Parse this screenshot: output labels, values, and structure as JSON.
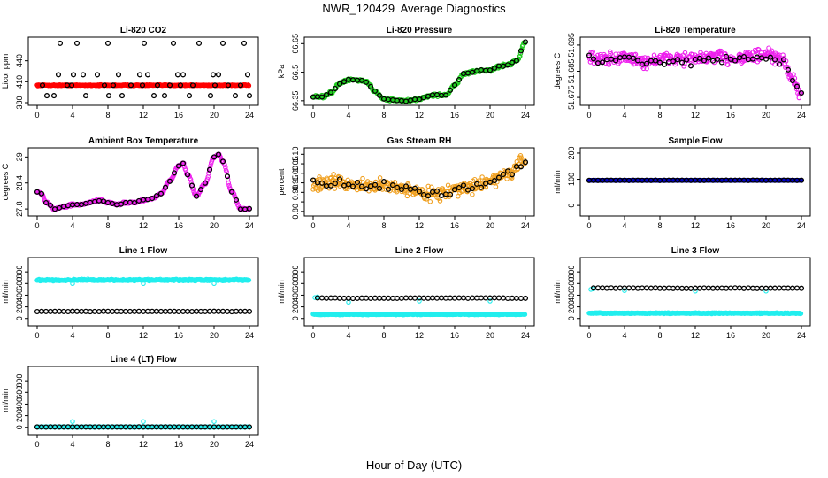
{
  "figure": {
    "title": "NWR_120429  Average Diagnostics",
    "xlabel": "Hour of Day (UTC)"
  },
  "colors": {
    "red": "#ff0000",
    "black": "#000000",
    "green": "#22cc22",
    "magenta": "#ee22ee",
    "orange": "#f0a020",
    "cyan": "#22eeee",
    "blue": "#0000cc"
  },
  "chart_data": [
    {
      "type": "scatter",
      "title": "Li-820 CO2",
      "ylabel": "Licor ppm",
      "xlim": [
        0,
        24
      ],
      "ylim": [
        380,
        470
      ],
      "xticks": [
        0,
        4,
        8,
        12,
        16,
        20,
        24
      ],
      "yticks": [
        380,
        410,
        440
      ],
      "series": [
        {
          "color": "red",
          "dense": true,
          "kind": "flat",
          "level": 405,
          "noise": 0.6
        },
        {
          "color": "black",
          "kind": "points",
          "x": [
            0.6,
            1.1,
            1.9,
            2.6,
            2.4,
            3.4,
            3.9,
            4.1,
            4.5,
            5.2,
            5.5,
            6.8,
            7.6,
            8.0,
            8.1,
            8.6,
            9.2,
            9.6,
            10.6,
            11.6,
            11.9,
            12.1,
            12.5,
            13.2,
            13.6,
            14.4,
            15.0,
            15.4,
            15.9,
            16.2,
            16.5,
            17.2,
            17.6,
            18.3,
            19.6,
            19.9,
            20.1,
            20.5,
            21.0,
            21.6,
            22.4,
            23.0,
            23.4,
            23.8,
            24.0
          ],
          "y": [
            405,
            390,
            390,
            465,
            420,
            405,
            405,
            420,
            465,
            420,
            390,
            420,
            405,
            465,
            390,
            405,
            420,
            390,
            405,
            420,
            405,
            465,
            420,
            390,
            405,
            390,
            405,
            465,
            420,
            405,
            420,
            390,
            405,
            465,
            390,
            420,
            405,
            420,
            465,
            405,
            390,
            405,
            465,
            420,
            390
          ]
        }
      ]
    },
    {
      "type": "scatter",
      "title": "Li-820 Pressure",
      "ylabel": "kPa",
      "xlim": [
        0,
        24
      ],
      "ylim": [
        66.34,
        66.67
      ],
      "xticks": [
        0,
        4,
        8,
        12,
        16,
        20,
        24
      ],
      "yticks": [
        66.35,
        66.5,
        66.65
      ],
      "series": [
        {
          "color": "green",
          "dense": true,
          "kind": "curve",
          "noise": 0.006,
          "x": [
            0,
            1,
            2,
            3,
            4,
            5,
            6,
            7,
            8,
            9,
            10,
            11,
            12,
            13,
            14,
            15,
            16,
            17,
            18,
            19,
            20,
            21,
            22,
            23,
            24
          ],
          "y": [
            66.37,
            66.37,
            66.39,
            66.44,
            66.46,
            66.46,
            66.45,
            66.4,
            66.36,
            66.355,
            66.35,
            66.35,
            66.36,
            66.375,
            66.38,
            66.38,
            66.43,
            66.49,
            66.5,
            66.51,
            66.51,
            66.53,
            66.54,
            66.56,
            66.66
          ]
        },
        {
          "color": "black",
          "kind": "curve",
          "step": 0.5,
          "noise": 0.003,
          "x": [
            0,
            1,
            2,
            3,
            4,
            5,
            6,
            7,
            8,
            9,
            10,
            11,
            12,
            13,
            14,
            15,
            16,
            17,
            18,
            19,
            20,
            21,
            22,
            23,
            24
          ],
          "y": [
            66.37,
            66.37,
            66.39,
            66.44,
            66.46,
            66.46,
            66.45,
            66.4,
            66.36,
            66.355,
            66.35,
            66.35,
            66.36,
            66.375,
            66.38,
            66.38,
            66.43,
            66.49,
            66.5,
            66.51,
            66.51,
            66.53,
            66.54,
            66.56,
            66.66
          ]
        }
      ]
    },
    {
      "type": "scatter",
      "title": "Li-820 Temperature",
      "ylabel": "degrees C",
      "xlim": [
        0,
        24
      ],
      "ylim": [
        51.673,
        51.697
      ],
      "xticks": [
        0,
        4,
        8,
        12,
        16,
        20,
        24
      ],
      "yticks": [
        51.675,
        51.685,
        51.695
      ],
      "series": [
        {
          "color": "magenta",
          "dense": true,
          "kind": "curve",
          "noise": 0.0022,
          "x": [
            0,
            2,
            4,
            6,
            8,
            10,
            12,
            14,
            16,
            18,
            20,
            22,
            23,
            24
          ],
          "y": [
            51.6905,
            51.6895,
            51.6905,
            51.6885,
            51.6895,
            51.69,
            51.6895,
            51.6905,
            51.69,
            51.6905,
            51.691,
            51.689,
            51.682,
            51.676
          ]
        },
        {
          "color": "black",
          "kind": "curve",
          "step": 0.5,
          "noise": 0.0012,
          "x": [
            0,
            2,
            4,
            6,
            8,
            10,
            12,
            14,
            16,
            18,
            20,
            22,
            23,
            24
          ],
          "y": [
            51.6895,
            51.689,
            51.6895,
            51.688,
            51.689,
            51.6895,
            51.6885,
            51.6895,
            51.689,
            51.6895,
            51.6905,
            51.688,
            51.682,
            51.677
          ]
        }
      ]
    },
    {
      "type": "scatter",
      "title": "Ambient Box Temperature",
      "ylabel": "degrees C",
      "xlim": [
        0,
        24
      ],
      "ylim": [
        27.7,
        29.15
      ],
      "xticks": [
        0,
        4,
        8,
        12,
        16,
        20,
        24
      ],
      "yticks": [
        27.8,
        28.4,
        29.0
      ],
      "series": [
        {
          "color": "magenta",
          "dense": true,
          "kind": "curve",
          "noise": 0.02,
          "x": [
            0,
            0.5,
            1,
            2,
            3,
            4,
            5,
            6,
            7,
            8,
            9,
            10,
            11,
            12,
            13,
            14,
            15,
            16,
            16.5,
            17,
            18,
            19,
            20,
            20.5,
            21,
            22,
            23,
            24
          ],
          "y": [
            28.2,
            28.15,
            27.95,
            27.8,
            27.85,
            27.9,
            27.9,
            27.95,
            28.0,
            27.95,
            27.9,
            27.95,
            27.95,
            28.0,
            28.05,
            28.15,
            28.45,
            28.8,
            28.85,
            28.6,
            28.1,
            28.4,
            29.0,
            29.05,
            28.9,
            28.2,
            27.8,
            27.8
          ]
        },
        {
          "color": "black",
          "kind": "curve",
          "step": 0.5,
          "noise": 0.01,
          "x": [
            0,
            0.5,
            1,
            2,
            3,
            4,
            5,
            6,
            7,
            8,
            9,
            10,
            11,
            12,
            13,
            14,
            15,
            16,
            16.5,
            17,
            18,
            19,
            20,
            20.5,
            21,
            22,
            23,
            24
          ],
          "y": [
            28.2,
            28.15,
            27.95,
            27.8,
            27.85,
            27.9,
            27.9,
            27.95,
            28.0,
            27.95,
            27.9,
            27.95,
            27.95,
            28.0,
            28.05,
            28.15,
            28.45,
            28.8,
            28.85,
            28.6,
            28.1,
            28.4,
            29.0,
            29.05,
            28.9,
            28.2,
            27.8,
            27.8
          ]
        }
      ]
    },
    {
      "type": "scatter",
      "title": "Gas Stream RH",
      "ylabel": "percent",
      "xlim": [
        0,
        24
      ],
      "ylim": [
        0.79,
        1.12
      ],
      "xticks": [
        0,
        4,
        8,
        12,
        16,
        20,
        24
      ],
      "yticks": [
        0.8,
        0.85,
        0.9,
        0.95,
        1.0,
        1.05,
        1.1
      ],
      "ytick_labels": [
        "0.80",
        "",
        "0.90",
        "0.95",
        "1.00",
        "1.05",
        "1.10"
      ],
      "series": [
        {
          "color": "orange",
          "dense": true,
          "kind": "curve",
          "noise": 0.028,
          "x": [
            0,
            2,
            4,
            6,
            8,
            10,
            12,
            14,
            16,
            18,
            20,
            22,
            24
          ],
          "y": [
            0.94,
            0.955,
            0.945,
            0.93,
            0.935,
            0.925,
            0.9,
            0.895,
            0.91,
            0.93,
            0.96,
            1.0,
            1.06
          ]
        },
        {
          "color": "black",
          "kind": "curve",
          "step": 0.5,
          "noise": 0.02,
          "x": [
            0,
            2,
            4,
            6,
            8,
            10,
            12,
            14,
            16,
            18,
            20,
            22,
            24
          ],
          "y": [
            0.94,
            0.955,
            0.945,
            0.93,
            0.935,
            0.925,
            0.9,
            0.895,
            0.91,
            0.93,
            0.96,
            1.0,
            1.06
          ]
        }
      ]
    },
    {
      "type": "scatter",
      "title": "Sample Flow",
      "ylabel": "ml/min",
      "xlim": [
        0,
        24
      ],
      "ylim": [
        -30,
        210
      ],
      "xticks": [
        0,
        4,
        8,
        12,
        16,
        20,
        24
      ],
      "yticks": [
        0,
        100,
        200
      ],
      "series": [
        {
          "color": "blue",
          "dense": true,
          "kind": "flat",
          "level": 96,
          "noise": 0.5
        },
        {
          "color": "black",
          "kind": "flat",
          "step": 0.5,
          "level": 96,
          "noise": 0.3
        }
      ]
    },
    {
      "type": "scatter",
      "title": "Line 1 Flow",
      "ylabel": "ml/min",
      "xlim": [
        0,
        24
      ],
      "ylim": [
        -80,
        1000
      ],
      "xticks": [
        0,
        4,
        8,
        12,
        16,
        20,
        24
      ],
      "yticks": [
        0,
        200,
        400,
        600,
        800
      ],
      "series": [
        {
          "color": "cyan",
          "dense": true,
          "kind": "flat",
          "level": 660,
          "noise": 12,
          "spikes": [
            {
              "x": 4,
              "y": 600
            },
            {
              "x": 12,
              "y": 600
            },
            {
              "x": 20,
              "y": 600
            }
          ]
        },
        {
          "color": "black",
          "kind": "flat",
          "step": 0.5,
          "level": 120,
          "noise": 2
        }
      ]
    },
    {
      "type": "scatter",
      "title": "Line 2 Flow",
      "ylabel": "ml/min",
      "xlim": [
        0,
        24
      ],
      "ylim": [
        -80,
        1000
      ],
      "xticks": [
        0,
        4,
        8,
        12,
        16,
        20,
        24
      ],
      "yticks": [
        0,
        200,
        400,
        600,
        800
      ],
      "series": [
        {
          "color": "cyan",
          "dense": true,
          "kind": "flat",
          "level": 70,
          "noise": 6,
          "extra": [
            {
              "x": 0.2,
              "y": 360
            },
            {
              "x": 0.5,
              "y": 370
            },
            {
              "x": 4,
              "y": 280
            },
            {
              "x": 12,
              "y": 300
            },
            {
              "x": 20,
              "y": 300
            }
          ]
        },
        {
          "color": "black",
          "kind": "flat",
          "step": 0.5,
          "start": 0.5,
          "level": 350,
          "noise": 4
        }
      ]
    },
    {
      "type": "scatter",
      "title": "Line 3 Flow",
      "ylabel": "ml/min",
      "xlim": [
        0,
        24
      ],
      "ylim": [
        -80,
        1000
      ],
      "xticks": [
        0,
        4,
        8,
        12,
        16,
        20,
        24
      ],
      "yticks": [
        0,
        200,
        400,
        600,
        800
      ],
      "series": [
        {
          "color": "cyan",
          "dense": true,
          "kind": "flat",
          "level": 90,
          "noise": 6,
          "extra": [
            {
              "x": 0.2,
              "y": 500
            },
            {
              "x": 0.5,
              "y": 510
            },
            {
              "x": 4,
              "y": 480
            },
            {
              "x": 12,
              "y": 470
            },
            {
              "x": 20,
              "y": 470
            }
          ]
        },
        {
          "color": "black",
          "kind": "flat",
          "step": 0.5,
          "start": 0.5,
          "level": 520,
          "noise": 4
        }
      ]
    },
    {
      "type": "scatter",
      "title": "Line 4 (LT) Flow",
      "ylabel": "ml/min",
      "xlim": [
        0,
        24
      ],
      "ylim": [
        -80,
        1000
      ],
      "xticks": [
        0,
        4,
        8,
        12,
        16,
        20,
        24
      ],
      "yticks": [
        0,
        200,
        400,
        600,
        800
      ],
      "series": [
        {
          "color": "cyan",
          "dense": true,
          "kind": "flat",
          "level": 5,
          "noise": 1,
          "extra": [
            {
              "x": 4,
              "y": 100
            },
            {
              "x": 12,
              "y": 100
            },
            {
              "x": 20,
              "y": 100
            }
          ]
        },
        {
          "color": "black",
          "kind": "flat",
          "step": 0.5,
          "level": 5,
          "noise": 1
        }
      ]
    }
  ]
}
